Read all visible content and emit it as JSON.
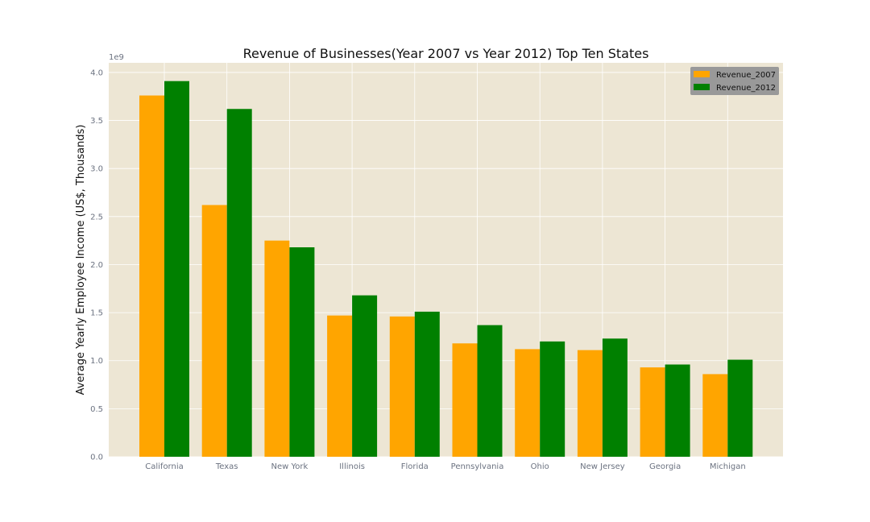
{
  "colors": {
    "plot_background": "#ede6d4",
    "grid": "#ffffff",
    "series_2007": "#ffa500",
    "series_2012": "#008000",
    "legend_background": "#999999"
  },
  "chart_data": {
    "type": "bar",
    "title": "Revenue of Businesses(Year 2007 vs Year 2012) Top Ten States",
    "xlabel": "",
    "ylabel": "Average Yearly Employee Income (US$, Thousands)",
    "offset_label": "1e9",
    "categories": [
      "California",
      "Texas",
      "New York",
      "Illinois",
      "Florida",
      "Pennsylvania",
      "Ohio",
      "New Jersey",
      "Georgia",
      "Michigan"
    ],
    "series": [
      {
        "name": "Revenue_2007",
        "color": "#ffa500",
        "values": [
          3.76,
          2.62,
          2.25,
          1.47,
          1.46,
          1.18,
          1.12,
          1.11,
          0.93,
          0.86
        ]
      },
      {
        "name": "Revenue_2012",
        "color": "#008000",
        "values": [
          3.91,
          3.62,
          2.18,
          1.68,
          1.51,
          1.37,
          1.2,
          1.23,
          0.96,
          1.01
        ]
      }
    ],
    "ylim": [
      0,
      4.1
    ],
    "yticks": [
      "0.0",
      "0.5",
      "1.0",
      "1.5",
      "2.0",
      "2.5",
      "3.0",
      "3.5",
      "4.0"
    ],
    "grid": true,
    "legend_position": "top-right"
  }
}
